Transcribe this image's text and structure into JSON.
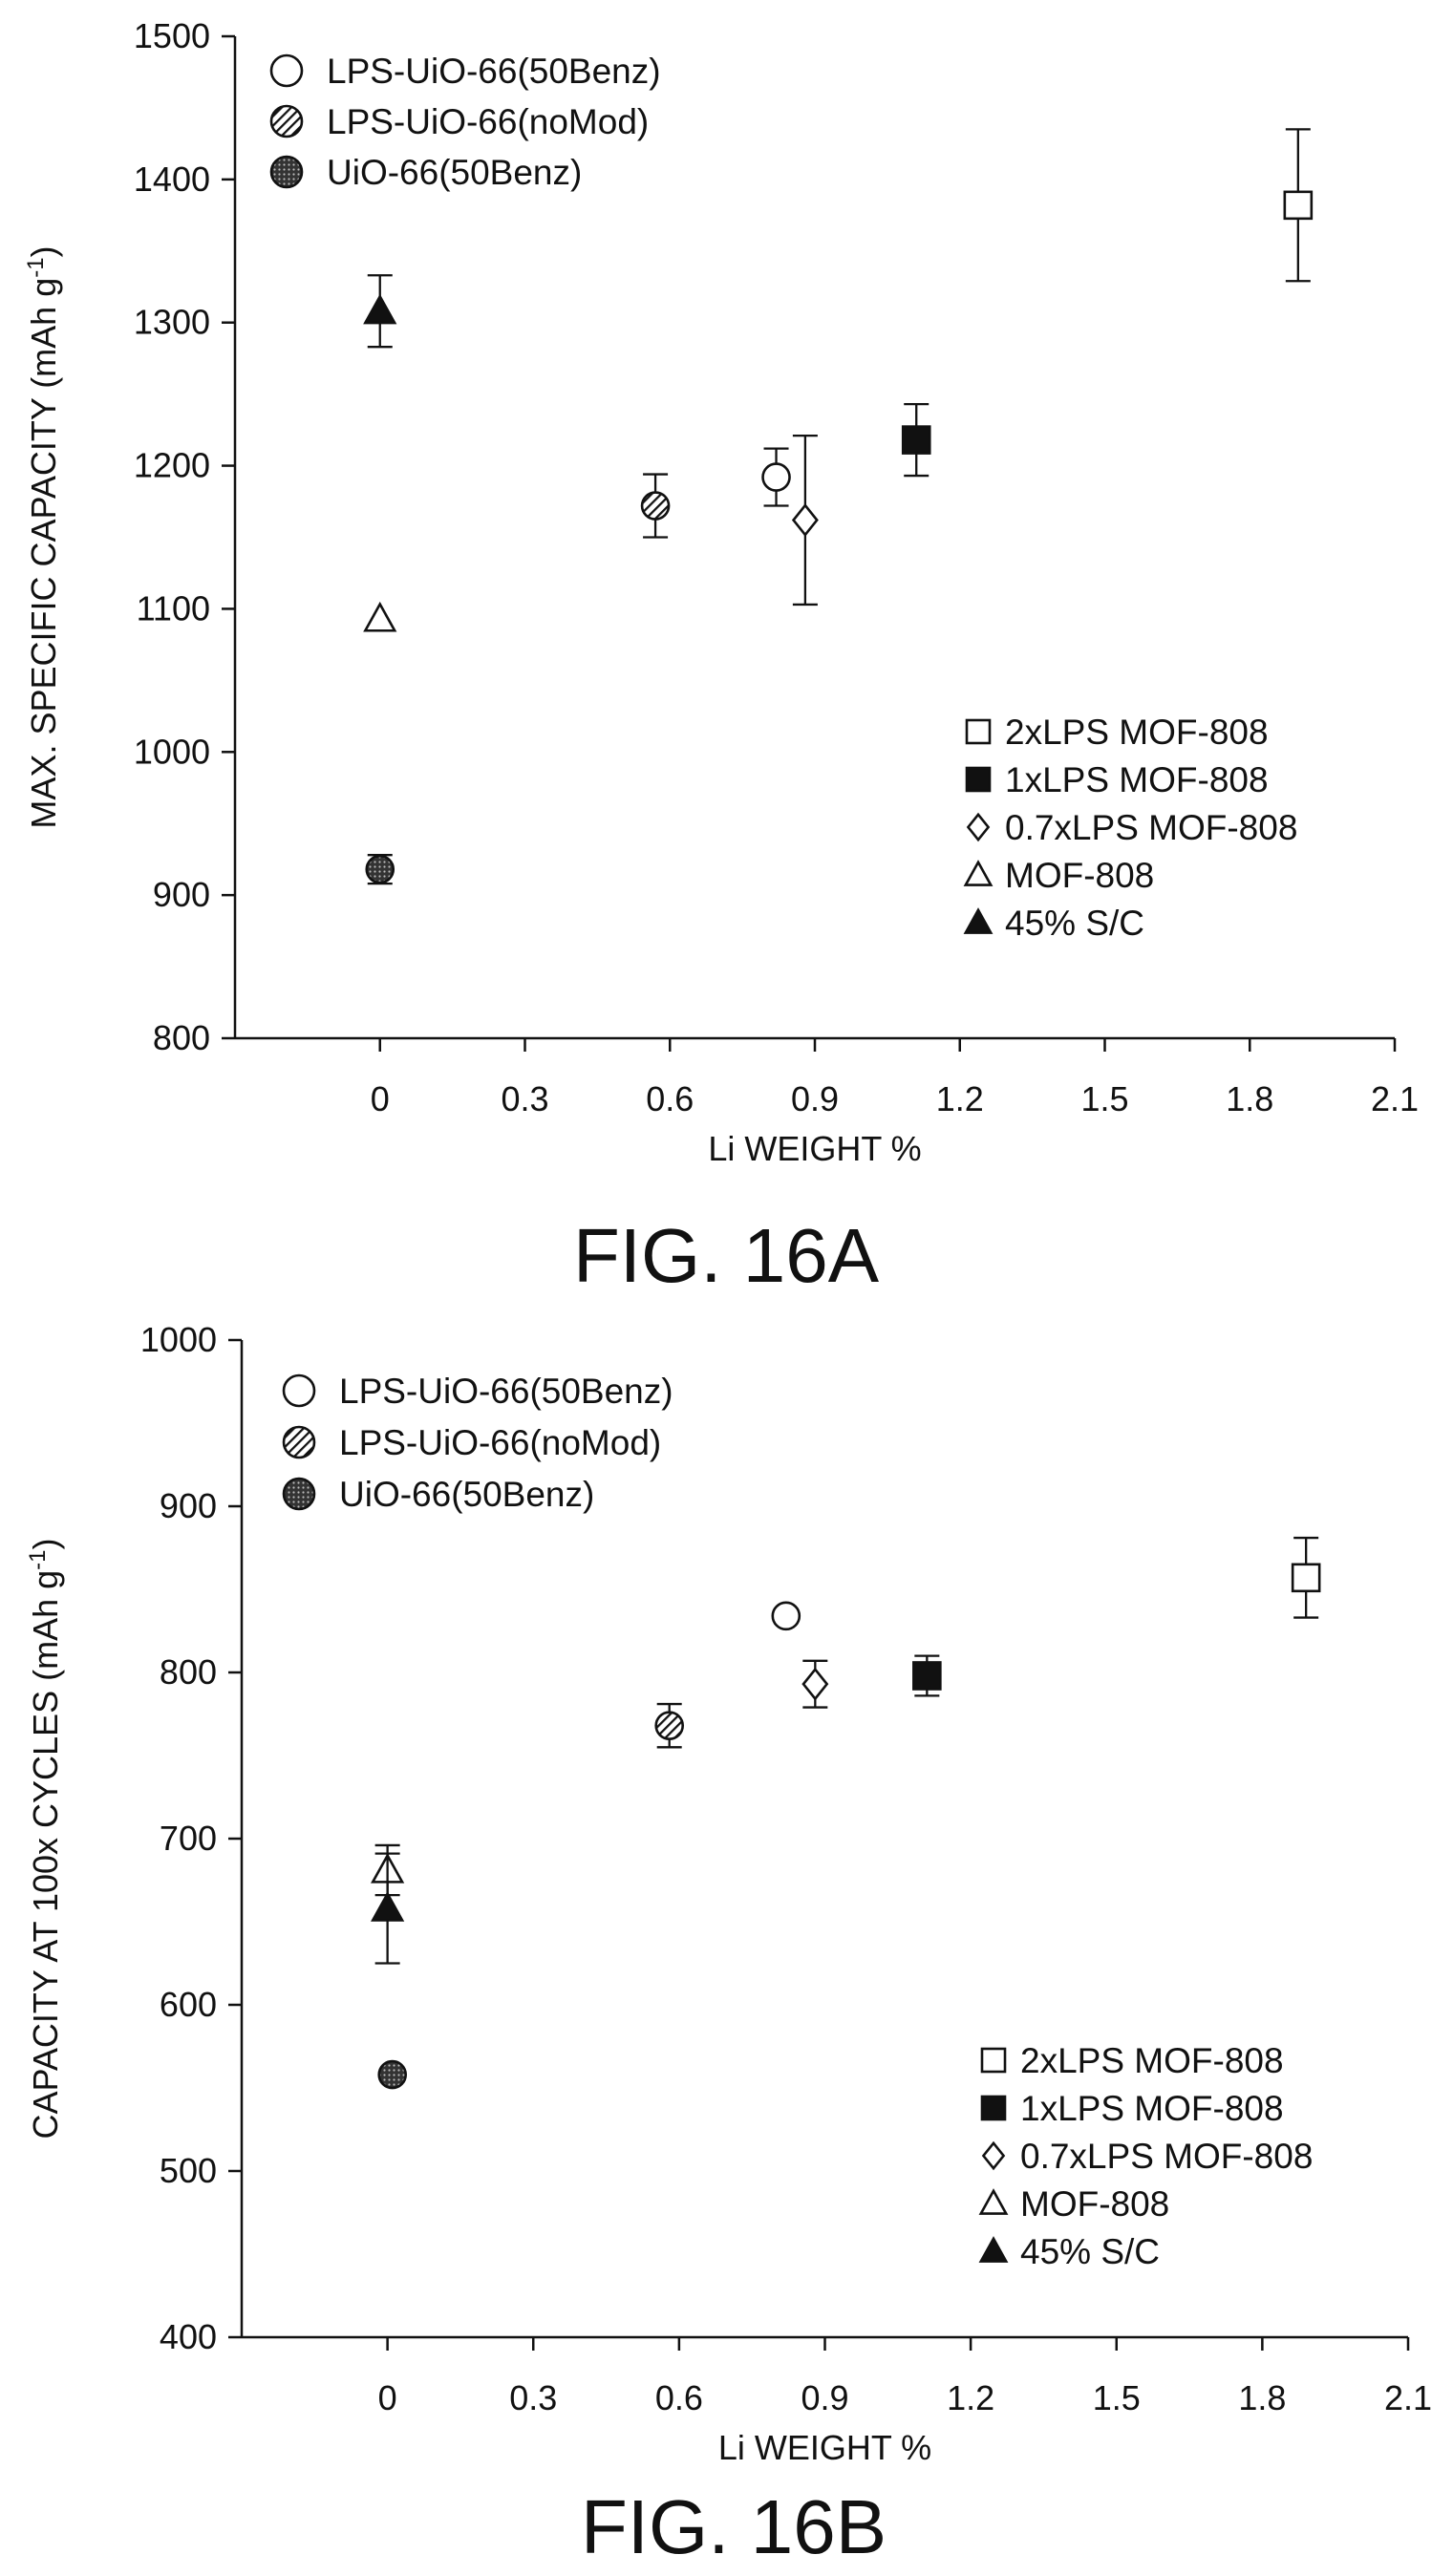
{
  "chart_data": [
    {
      "type": "scatter",
      "caption": "FIG. 16A",
      "xlabel": "Li WEIGHT %",
      "ylabel_main": "MAX. SPECIFIC CAPACITY (mAh g",
      "ylabel_sup": "-1",
      "ylabel_close": ")",
      "xlim": [
        -0.3,
        2.1
      ],
      "ylim": [
        800,
        1500
      ],
      "xticks": [
        0,
        0.3,
        0.6,
        0.9,
        1.2,
        1.5,
        1.8,
        2.1
      ],
      "xtick_labels": [
        "0",
        "0.3",
        "0.6",
        "0.9",
        "1.2",
        "1.5",
        "1.8",
        "2.1"
      ],
      "yticks": [
        800,
        900,
        1000,
        1100,
        1200,
        1300,
        1400,
        1500
      ],
      "ytick_labels": [
        "800",
        "900",
        "1000",
        "1100",
        "1200",
        "1300",
        "1400",
        "1500"
      ],
      "grid": false,
      "legend_left_position": "top-left",
      "legend_right_position": "bottom-right",
      "legend_left": [
        {
          "label": "LPS-UiO-66(50Benz)",
          "marker": "open-circle"
        },
        {
          "label": "LPS-UiO-66(noMod)",
          "marker": "hatched-circle"
        },
        {
          "label": "UiO-66(50Benz)",
          "marker": "dotted-circle"
        }
      ],
      "legend_right": [
        {
          "label": "2xLPS MOF-808",
          "marker": "open-square"
        },
        {
          "label": "1xLPS MOF-808",
          "marker": "filled-square"
        },
        {
          "label": "0.7xLPS MOF-808",
          "marker": "open-diamond"
        },
        {
          "label": "MOF-808",
          "marker": "open-triangle"
        },
        {
          "label": "45% S/C",
          "marker": "filled-triangle"
        }
      ],
      "points": [
        {
          "series": "45% S/C",
          "marker": "filled-triangle",
          "x": 0.0,
          "y": 1308,
          "err": 25
        },
        {
          "series": "MOF-808",
          "marker": "open-triangle",
          "x": 0.0,
          "y": 1093,
          "err": null
        },
        {
          "series": "UiO-66(50Benz)",
          "marker": "dotted-circle",
          "x": 0.0,
          "y": 918,
          "err": 10
        },
        {
          "series": "LPS-UiO-66(noMod)",
          "marker": "hatched-circle",
          "x": 0.57,
          "y": 1172,
          "err": 22
        },
        {
          "series": "LPS-UiO-66(50Benz)",
          "marker": "open-circle",
          "x": 0.82,
          "y": 1192,
          "err": 20
        },
        {
          "series": "0.7xLPS MOF-808",
          "marker": "open-diamond",
          "x": 0.88,
          "y": 1162,
          "err": 59
        },
        {
          "series": "1xLPS MOF-808",
          "marker": "filled-square",
          "x": 1.11,
          "y": 1218,
          "err": 25
        },
        {
          "series": "2xLPS MOF-808",
          "marker": "open-square",
          "x": 1.9,
          "y": 1382,
          "err": 53
        }
      ]
    },
    {
      "type": "scatter",
      "caption": "FIG. 16B",
      "xlabel": "Li WEIGHT %",
      "ylabel_main": "CAPACITY AT 100x CYCLES (mAh g",
      "ylabel_sup": "-1",
      "ylabel_close": ")",
      "xlim": [
        -0.3,
        2.1
      ],
      "ylim": [
        400,
        1000
      ],
      "xticks": [
        0,
        0.3,
        0.6,
        0.9,
        1.2,
        1.5,
        1.8,
        2.1
      ],
      "xtick_labels": [
        "0",
        "0.3",
        "0.6",
        "0.9",
        "1.2",
        "1.5",
        "1.8",
        "2.1"
      ],
      "yticks": [
        400,
        500,
        600,
        700,
        800,
        900,
        1000
      ],
      "ytick_labels": [
        "400",
        "500",
        "600",
        "700",
        "800",
        "900",
        "1000"
      ],
      "grid": false,
      "legend_left_position": "top-left",
      "legend_right_position": "bottom-right",
      "legend_left": [
        {
          "label": "LPS-UiO-66(50Benz)",
          "marker": "open-circle"
        },
        {
          "label": "LPS-UiO-66(noMod)",
          "marker": "hatched-circle"
        },
        {
          "label": "UiO-66(50Benz)",
          "marker": "dotted-circle"
        }
      ],
      "legend_right": [
        {
          "label": "2xLPS MOF-808",
          "marker": "open-square"
        },
        {
          "label": "1xLPS MOF-808",
          "marker": "filled-square"
        },
        {
          "label": "0.7xLPS MOF-808",
          "marker": "open-diamond"
        },
        {
          "label": "MOF-808",
          "marker": "open-triangle"
        },
        {
          "label": "45% S/C",
          "marker": "filled-triangle"
        }
      ],
      "points": [
        {
          "series": "MOF-808",
          "marker": "open-triangle",
          "x": 0.0,
          "y": 681,
          "err": 15
        },
        {
          "series": "45% S/C",
          "marker": "filled-triangle",
          "x": 0.0,
          "y": 658,
          "err": 33
        },
        {
          "series": "UiO-66(50Benz)",
          "marker": "dotted-circle",
          "x": 0.01,
          "y": 558,
          "err": null
        },
        {
          "series": "LPS-UiO-66(noMod)",
          "marker": "hatched-circle",
          "x": 0.58,
          "y": 768,
          "err": 13
        },
        {
          "series": "LPS-UiO-66(50Benz)",
          "marker": "open-circle",
          "x": 0.82,
          "y": 834,
          "err": null
        },
        {
          "series": "0.7xLPS MOF-808",
          "marker": "open-diamond",
          "x": 0.88,
          "y": 793,
          "err": 14
        },
        {
          "series": "1xLPS MOF-808",
          "marker": "filled-square",
          "x": 1.11,
          "y": 798,
          "err": 12
        },
        {
          "series": "2xLPS MOF-808",
          "marker": "open-square",
          "x": 1.89,
          "y": 857,
          "err": 24
        }
      ]
    }
  ]
}
